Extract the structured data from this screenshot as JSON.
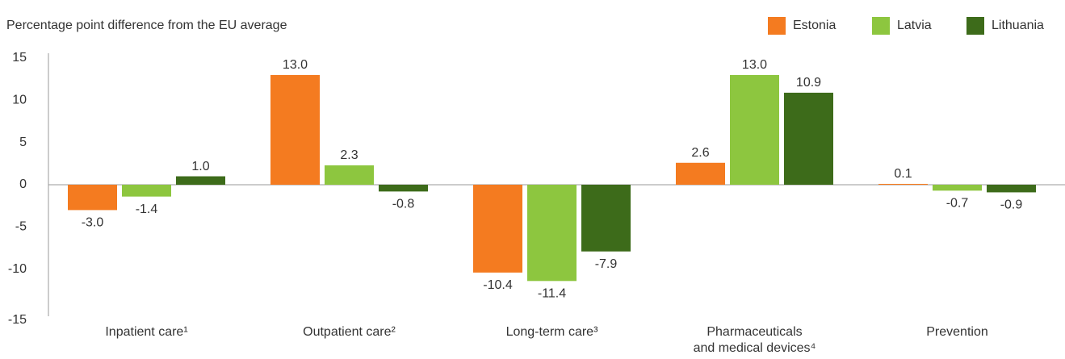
{
  "chart_data": {
    "type": "bar",
    "title": "Percentage point difference from the EU average",
    "categories": [
      "Inpatient care¹",
      "Outpatient care²",
      "Long-term care³",
      "Pharmaceuticals\nand medical devices⁴",
      "Prevention"
    ],
    "series": [
      {
        "name": "Estonia",
        "color": "#f47b20",
        "values": [
          -3.0,
          13.0,
          -10.4,
          2.6,
          0.1
        ],
        "value_labels": [
          "-3.0",
          "13.0",
          "-10.4",
          "2.6",
          "0.1"
        ]
      },
      {
        "name": "Latvia",
        "color": "#8dc63f",
        "values": [
          -1.4,
          2.3,
          -11.4,
          13.0,
          -0.7
        ],
        "value_labels": [
          "-1.4",
          "2.3",
          "-11.4",
          "13.0",
          "-0.7"
        ]
      },
      {
        "name": "Lithuania",
        "color": "#3d6b1a",
        "values": [
          1.0,
          -0.8,
          -7.9,
          10.9,
          -0.9
        ],
        "value_labels": [
          "1.0",
          "-0.8",
          "-7.9",
          "10.9",
          "-0.9"
        ]
      }
    ],
    "ylim": [
      -15,
      15
    ],
    "yticks": [
      -15,
      -10,
      -5,
      0,
      5,
      10,
      15
    ],
    "grid": false,
    "legend": "top-right"
  }
}
